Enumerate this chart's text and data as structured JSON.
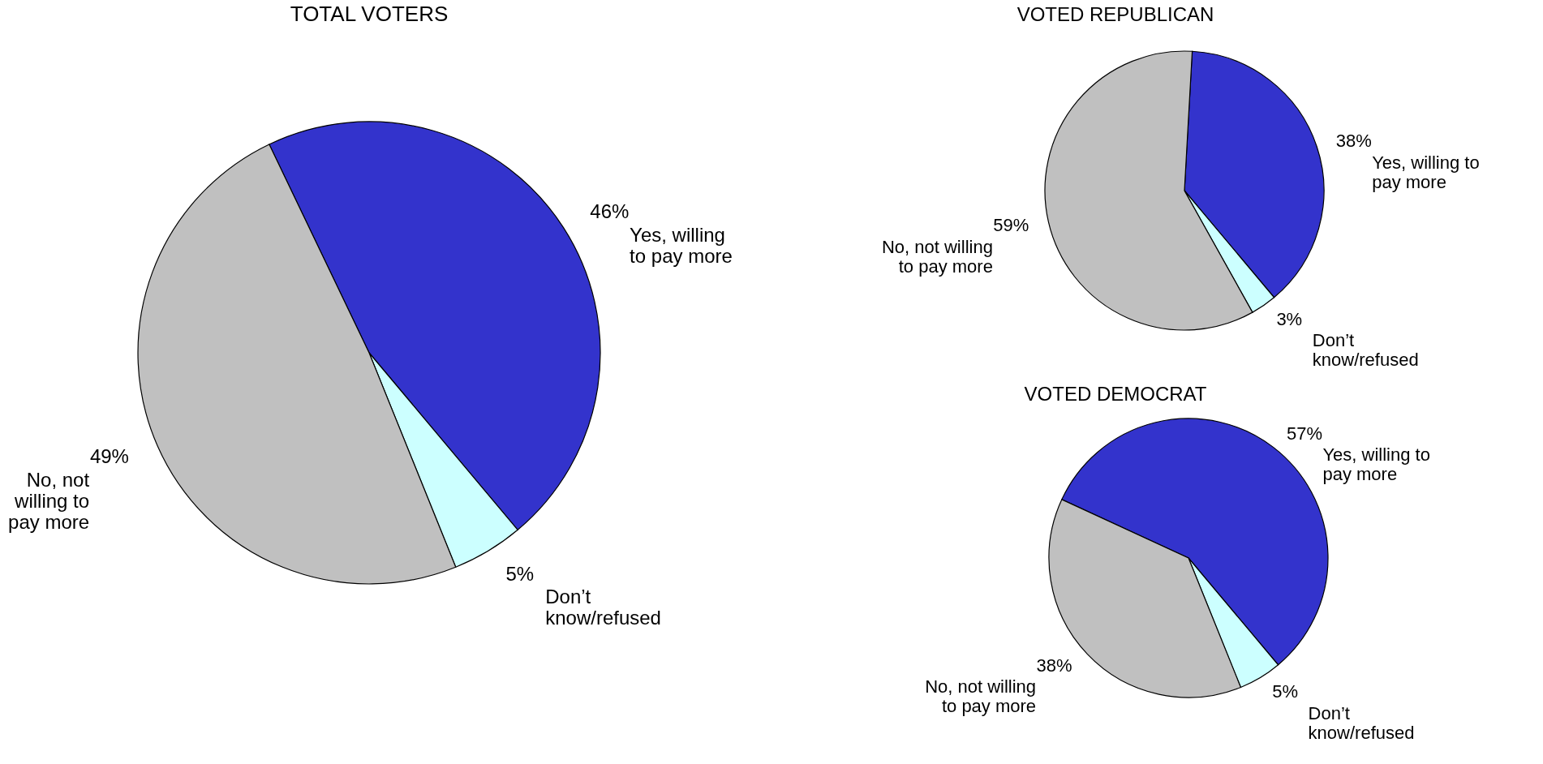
{
  "chart_data": [
    {
      "type": "pie",
      "title": "TOTAL VOTERS",
      "categories": [
        "Yes, willing to pay more",
        "Don’t know/refused",
        "No, not willing to pay more"
      ],
      "values": [
        46,
        5,
        49
      ],
      "colors": [
        "#3333cc",
        "#ccffff",
        "#c0c0c0"
      ],
      "value_labels": [
        "46%",
        "5%",
        "49%"
      ],
      "legend": false
    },
    {
      "type": "pie",
      "title": "VOTED REPUBLICAN",
      "categories": [
        "Yes, willing to pay more",
        "Don’t know/refused",
        "No, not willing to pay more"
      ],
      "values": [
        38,
        3,
        59
      ],
      "colors": [
        "#3333cc",
        "#ccffff",
        "#c0c0c0"
      ],
      "value_labels": [
        "38%",
        "3%",
        "59%"
      ],
      "legend": false
    },
    {
      "type": "pie",
      "title": "VOTED DEMOCRAT",
      "categories": [
        "Yes, willing to pay more",
        "Don’t know/refused",
        "No, not willing to pay more"
      ],
      "values": [
        57,
        5,
        38
      ],
      "colors": [
        "#3333cc",
        "#ccffff",
        "#c0c0c0"
      ],
      "value_labels": [
        "57%",
        "5%",
        "38%"
      ],
      "legend": false
    }
  ]
}
